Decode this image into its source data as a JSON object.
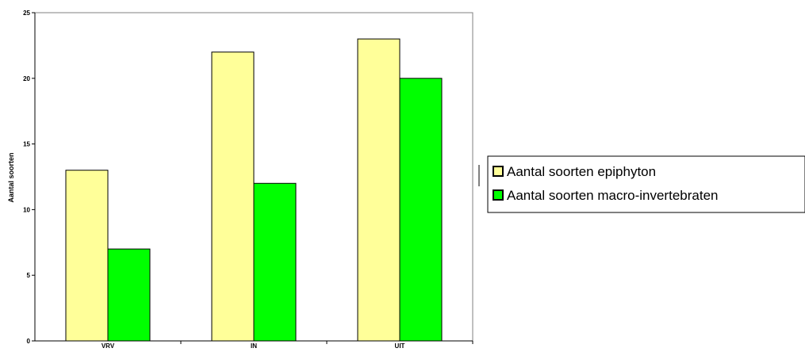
{
  "chart_data": {
    "type": "bar",
    "title": "",
    "xlabel": "",
    "ylabel": "Aantal soorten",
    "categories": [
      "VRV",
      "IN",
      "UIT"
    ],
    "series": [
      {
        "name": "Aantal soorten epiphyton",
        "values": [
          13,
          22,
          23
        ],
        "color": "#ffff99"
      },
      {
        "name": "Aantal soorten macro-invertebraten",
        "values": [
          7,
          12,
          20
        ],
        "color": "#00ff00"
      }
    ],
    "ylim": [
      0,
      25
    ],
    "yticks": [
      0,
      5,
      10,
      15,
      20,
      25
    ],
    "grid": false,
    "legend_position": "right"
  }
}
